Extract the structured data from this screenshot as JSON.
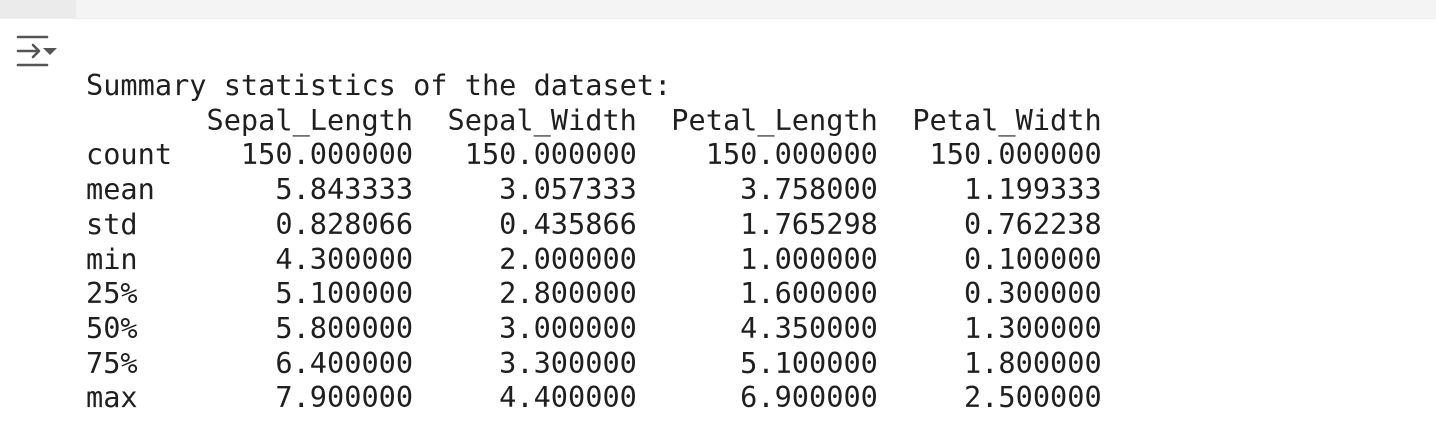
{
  "output_toggle": {
    "icon": "expand-output-icon"
  },
  "output": {
    "lines": [
      "Summary statistics of the dataset:",
      "       Sepal_Length  Sepal_Width  Petal_Length  Petal_Width",
      "count    150.000000   150.000000    150.000000   150.000000",
      "mean       5.843333     3.057333      3.758000     1.199333",
      "std        0.828066     0.435866      1.765298     0.762238",
      "min        4.300000     2.000000      1.000000     0.100000",
      "25%        5.100000     2.800000      1.600000     0.300000",
      "50%        5.800000     3.000000      4.350000     1.300000",
      "75%        6.400000     3.300000      5.100000     1.800000",
      "max        7.900000     4.400000      6.900000     2.500000"
    ]
  }
}
